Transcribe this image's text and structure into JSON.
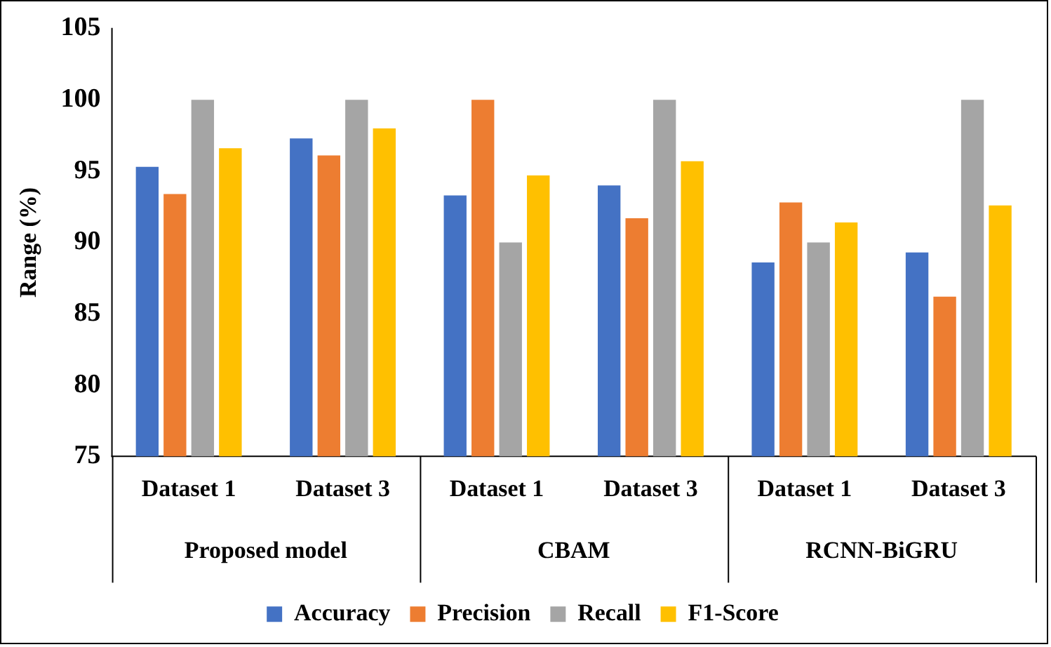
{
  "chart_data": {
    "type": "bar",
    "ylabel": "Range (%)",
    "categories": [
      "Dataset 1",
      "Dataset 3",
      "Dataset 1",
      "Dataset 3",
      "Dataset 1",
      "Dataset 3"
    ],
    "annotations": [
      "Proposed model",
      "CBAM",
      "RCNN-BiGRU"
    ],
    "series": [
      {
        "name": "Accuracy",
        "color": "#4472c4",
        "values": [
          95.3,
          97.3,
          93.3,
          94.0,
          88.6,
          89.3
        ]
      },
      {
        "name": "Precision",
        "color": "#ed7d31",
        "values": [
          93.4,
          96.1,
          100,
          91.7,
          92.8,
          86.2
        ]
      },
      {
        "name": "Recall",
        "color": "#a5a5a5",
        "values": [
          100,
          100,
          90.0,
          100,
          90.0,
          100
        ]
      },
      {
        "name": "F1-Score",
        "color": "#ffc000",
        "values": [
          96.6,
          98.0,
          94.7,
          95.7,
          91.4,
          92.6
        ]
      }
    ],
    "ylim": [
      75,
      105
    ],
    "yticks": [
      75,
      80,
      85,
      90,
      95,
      100,
      105
    ],
    "grid": false,
    "legend": "bottom"
  }
}
